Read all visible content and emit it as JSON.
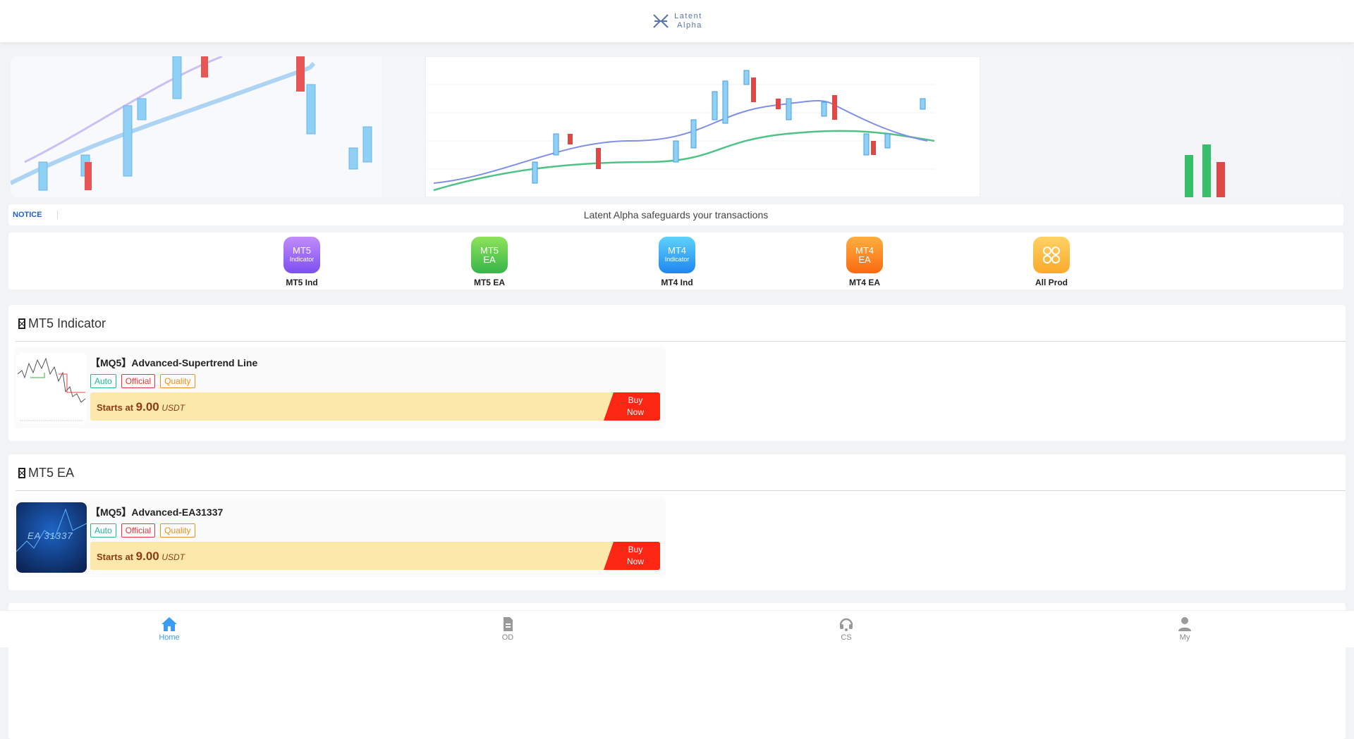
{
  "header": {
    "logo_line1": "Latent",
    "logo_line2": "Alpha"
  },
  "notice": {
    "tag": "NOTICE",
    "text": "Latent Alpha safeguards your transactions"
  },
  "categories": [
    {
      "icon_line1": "MT5",
      "icon_line2": "Indicator",
      "label": "MT5 Ind",
      "color_from": "#c38cfb",
      "color_to": "#7b4ff0"
    },
    {
      "icon_line1": "MT5",
      "icon_line2": "EA",
      "label": "MT5 EA",
      "color_from": "#8fe25a",
      "color_to": "#36b64a"
    },
    {
      "icon_line1": "MT4",
      "icon_line2": "Indicator",
      "label": "MT4 Ind",
      "color_from": "#5fd2fb",
      "color_to": "#1f86f0"
    },
    {
      "icon_line1": "MT4",
      "icon_line2": "EA",
      "label": "MT4 EA",
      "color_from": "#ffae3e",
      "color_to": "#fb6a12"
    },
    {
      "icon_line1": "",
      "icon_line2": "",
      "label": "All Prod",
      "icon": "grid-icon",
      "color_from": "#ffd266",
      "color_to": "#fba92a"
    }
  ],
  "sections": [
    {
      "title": "MT5 Indicator",
      "product": {
        "title": "【MQ5】Advanced-Supertrend Line",
        "tags": [
          "Auto",
          "Official",
          "Quality"
        ],
        "price_prefix": "Starts at",
        "price": "9.00",
        "unit": "USDT",
        "buy_line1": "Buy",
        "buy_line2": "Now"
      }
    },
    {
      "title": "MT5 EA",
      "product": {
        "title": "【MQ5】Advanced-EA31337",
        "tags": [
          "Auto",
          "Official",
          "Quality"
        ],
        "price_prefix": "Starts at",
        "price": "9.00",
        "unit": "USDT",
        "buy_line1": "Buy",
        "buy_line2": "Now",
        "thumb_text": "EA 31337"
      }
    }
  ],
  "tag_colors": {
    "Auto": "#1fb89a",
    "Official": "#e8363a",
    "Quality": "#e6921a"
  },
  "nav": [
    {
      "label": "Home",
      "icon": "home-icon",
      "active": true
    },
    {
      "label": "OD",
      "icon": "document-icon"
    },
    {
      "label": "CS",
      "icon": "headset-icon"
    },
    {
      "label": "My",
      "icon": "user-icon"
    }
  ]
}
